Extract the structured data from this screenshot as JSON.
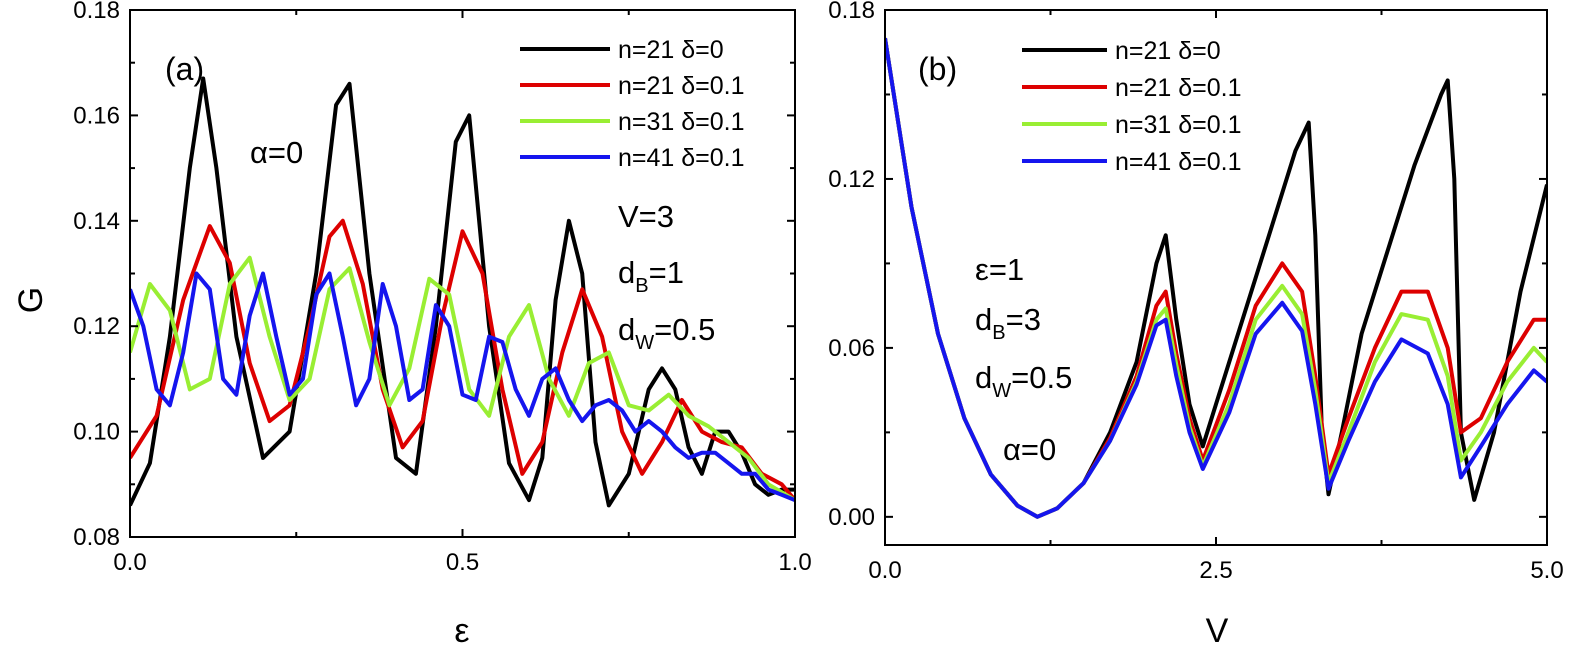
{
  "colors": {
    "black": "#000000",
    "red": "#dd0000",
    "green": "#99ee33",
    "blue": "#1515ee"
  },
  "chart_data": [
    {
      "type": "line",
      "panel_label": "(a)",
      "xlabel": "ε",
      "ylabel": "G",
      "xlim": [
        0.0,
        1.0
      ],
      "ylim": [
        0.08,
        0.18
      ],
      "xticks": [
        0.0,
        0.5,
        1.0
      ],
      "xtick_labels": [
        "0.0",
        "0.5",
        "1.0"
      ],
      "yticks": [
        0.08,
        0.1,
        0.12,
        0.14,
        0.16,
        0.18
      ],
      "ytick_labels": [
        "0.08",
        "0.10",
        "0.12",
        "0.14",
        "0.16",
        "0.18"
      ],
      "grid": false,
      "legend_position": "top-right",
      "annotations": [
        {
          "base": "α=0",
          "sub": "",
          "suffix": ""
        },
        {
          "base": "V=3",
          "sub": "",
          "suffix": ""
        },
        {
          "base": "d",
          "sub": "B",
          "suffix": "=1"
        },
        {
          "base": "d",
          "sub": "W",
          "suffix": "=0.5"
        }
      ],
      "series": [
        {
          "name": "n=21 δ=0",
          "color": "#000000",
          "x": [
            0.0,
            0.03,
            0.06,
            0.09,
            0.11,
            0.13,
            0.16,
            0.2,
            0.24,
            0.28,
            0.31,
            0.33,
            0.36,
            0.4,
            0.43,
            0.46,
            0.49,
            0.51,
            0.54,
            0.57,
            0.6,
            0.62,
            0.64,
            0.66,
            0.68,
            0.7,
            0.72,
            0.75,
            0.78,
            0.8,
            0.82,
            0.84,
            0.86,
            0.88,
            0.9,
            0.92,
            0.94,
            0.96,
            0.98,
            1.0
          ],
          "y": [
            0.086,
            0.094,
            0.118,
            0.15,
            0.167,
            0.15,
            0.118,
            0.095,
            0.1,
            0.13,
            0.162,
            0.166,
            0.13,
            0.095,
            0.092,
            0.12,
            0.155,
            0.16,
            0.12,
            0.094,
            0.087,
            0.095,
            0.125,
            0.14,
            0.13,
            0.098,
            0.086,
            0.092,
            0.108,
            0.112,
            0.108,
            0.097,
            0.092,
            0.1,
            0.1,
            0.096,
            0.09,
            0.088,
            0.089,
            0.089
          ]
        },
        {
          "name": "n=21 δ=0.1",
          "color": "#dd0000",
          "x": [
            0.0,
            0.04,
            0.08,
            0.12,
            0.15,
            0.18,
            0.21,
            0.24,
            0.27,
            0.3,
            0.32,
            0.35,
            0.38,
            0.41,
            0.44,
            0.47,
            0.5,
            0.53,
            0.56,
            0.59,
            0.62,
            0.65,
            0.68,
            0.71,
            0.74,
            0.77,
            0.8,
            0.83,
            0.86,
            0.89,
            0.92,
            0.95,
            0.98,
            1.0
          ],
          "y": [
            0.095,
            0.103,
            0.125,
            0.139,
            0.132,
            0.113,
            0.102,
            0.105,
            0.12,
            0.137,
            0.14,
            0.128,
            0.108,
            0.097,
            0.102,
            0.122,
            0.138,
            0.13,
            0.108,
            0.092,
            0.098,
            0.115,
            0.127,
            0.118,
            0.1,
            0.092,
            0.098,
            0.106,
            0.1,
            0.098,
            0.097,
            0.092,
            0.09,
            0.087
          ]
        },
        {
          "name": "n=31 δ=0.1",
          "color": "#99ee33",
          "x": [
            0.0,
            0.03,
            0.06,
            0.09,
            0.12,
            0.15,
            0.18,
            0.21,
            0.24,
            0.27,
            0.3,
            0.33,
            0.36,
            0.39,
            0.42,
            0.45,
            0.48,
            0.51,
            0.54,
            0.57,
            0.6,
            0.63,
            0.66,
            0.69,
            0.72,
            0.75,
            0.78,
            0.81,
            0.84,
            0.87,
            0.9,
            0.93,
            0.96,
            1.0
          ],
          "y": [
            0.115,
            0.128,
            0.123,
            0.108,
            0.11,
            0.128,
            0.133,
            0.118,
            0.106,
            0.11,
            0.127,
            0.131,
            0.117,
            0.105,
            0.112,
            0.129,
            0.126,
            0.108,
            0.103,
            0.118,
            0.124,
            0.11,
            0.103,
            0.113,
            0.115,
            0.105,
            0.104,
            0.107,
            0.103,
            0.101,
            0.098,
            0.095,
            0.09,
            0.087
          ]
        },
        {
          "name": "n=41 δ=0.1",
          "color": "#1515ee",
          "x": [
            0.0,
            0.02,
            0.04,
            0.06,
            0.08,
            0.1,
            0.12,
            0.14,
            0.16,
            0.18,
            0.2,
            0.22,
            0.24,
            0.26,
            0.28,
            0.3,
            0.32,
            0.34,
            0.36,
            0.38,
            0.4,
            0.42,
            0.44,
            0.46,
            0.48,
            0.5,
            0.52,
            0.54,
            0.56,
            0.58,
            0.6,
            0.62,
            0.64,
            0.66,
            0.68,
            0.7,
            0.72,
            0.74,
            0.76,
            0.78,
            0.8,
            0.82,
            0.84,
            0.86,
            0.88,
            0.9,
            0.92,
            0.94,
            0.96,
            0.98,
            1.0
          ],
          "y": [
            0.127,
            0.12,
            0.108,
            0.105,
            0.115,
            0.13,
            0.127,
            0.11,
            0.107,
            0.122,
            0.13,
            0.118,
            0.107,
            0.11,
            0.126,
            0.13,
            0.118,
            0.105,
            0.11,
            0.128,
            0.12,
            0.106,
            0.108,
            0.124,
            0.12,
            0.107,
            0.106,
            0.118,
            0.117,
            0.108,
            0.103,
            0.11,
            0.112,
            0.106,
            0.102,
            0.105,
            0.106,
            0.104,
            0.1,
            0.102,
            0.1,
            0.097,
            0.095,
            0.096,
            0.096,
            0.094,
            0.092,
            0.092,
            0.089,
            0.088,
            0.087
          ]
        }
      ]
    },
    {
      "type": "line",
      "panel_label": "(b)",
      "xlabel": "V",
      "ylabel": "",
      "xlim": [
        0.0,
        5.0
      ],
      "ylim": [
        -0.01,
        0.18
      ],
      "xticks": [
        0.0,
        2.5,
        5.0
      ],
      "xtick_labels": [
        "0.0",
        "2.5",
        "5.0"
      ],
      "yticks": [
        0.0,
        0.06,
        0.12,
        0.18
      ],
      "ytick_labels": [
        "0.00",
        "0.06",
        "0.12",
        "0.18"
      ],
      "grid": false,
      "legend_position": "top-center",
      "annotations": [
        {
          "base": "ε=1",
          "sub": "",
          "suffix": ""
        },
        {
          "base": "d",
          "sub": "B",
          "suffix": "=3"
        },
        {
          "base": "d",
          "sub": "W",
          "suffix": "=0.5"
        },
        {
          "base": "α=0",
          "sub": "",
          "suffix": ""
        }
      ],
      "series": [
        {
          "name": "n=21 δ=0",
          "color": "#000000",
          "x": [
            0.0,
            0.2,
            0.4,
            0.6,
            0.8,
            1.0,
            1.15,
            1.3,
            1.5,
            1.7,
            1.9,
            2.05,
            2.12,
            2.2,
            2.3,
            2.4,
            2.5,
            2.7,
            2.9,
            3.1,
            3.2,
            3.25,
            3.3,
            3.35,
            3.45,
            3.6,
            3.8,
            4.0,
            4.2,
            4.25,
            4.3,
            4.35,
            4.45,
            4.6,
            4.8,
            5.0
          ],
          "y": [
            0.17,
            0.11,
            0.065,
            0.035,
            0.015,
            0.004,
            0.0,
            0.003,
            0.012,
            0.03,
            0.055,
            0.09,
            0.1,
            0.07,
            0.04,
            0.025,
            0.04,
            0.07,
            0.1,
            0.13,
            0.14,
            0.1,
            0.03,
            0.008,
            0.03,
            0.065,
            0.095,
            0.125,
            0.15,
            0.155,
            0.12,
            0.03,
            0.006,
            0.03,
            0.08,
            0.118
          ]
        },
        {
          "name": "n=21 δ=0.1",
          "color": "#dd0000",
          "x": [
            0.0,
            0.2,
            0.4,
            0.6,
            0.8,
            1.0,
            1.15,
            1.3,
            1.5,
            1.7,
            1.9,
            2.05,
            2.12,
            2.2,
            2.3,
            2.4,
            2.6,
            2.8,
            3.0,
            3.15,
            3.25,
            3.35,
            3.5,
            3.7,
            3.9,
            4.1,
            4.25,
            4.35,
            4.5,
            4.7,
            4.9,
            5.0
          ],
          "y": [
            0.17,
            0.11,
            0.065,
            0.035,
            0.015,
            0.004,
            0.0,
            0.003,
            0.012,
            0.028,
            0.05,
            0.075,
            0.08,
            0.058,
            0.035,
            0.02,
            0.045,
            0.075,
            0.09,
            0.08,
            0.05,
            0.015,
            0.035,
            0.06,
            0.08,
            0.08,
            0.06,
            0.03,
            0.035,
            0.055,
            0.07,
            0.07
          ]
        },
        {
          "name": "n=31 δ=0.1",
          "color": "#99ee33",
          "x": [
            0.0,
            0.2,
            0.4,
            0.6,
            0.8,
            1.0,
            1.15,
            1.3,
            1.5,
            1.7,
            1.9,
            2.05,
            2.12,
            2.2,
            2.3,
            2.4,
            2.6,
            2.8,
            3.0,
            3.15,
            3.25,
            3.35,
            3.5,
            3.7,
            3.9,
            4.1,
            4.25,
            4.35,
            4.5,
            4.7,
            4.9,
            5.0
          ],
          "y": [
            0.17,
            0.11,
            0.065,
            0.035,
            0.015,
            0.004,
            0.0,
            0.003,
            0.012,
            0.027,
            0.048,
            0.07,
            0.074,
            0.054,
            0.032,
            0.018,
            0.04,
            0.07,
            0.082,
            0.072,
            0.045,
            0.012,
            0.03,
            0.055,
            0.072,
            0.07,
            0.05,
            0.02,
            0.03,
            0.048,
            0.06,
            0.055
          ]
        },
        {
          "name": "n=41 δ=0.1",
          "color": "#1515ee",
          "x": [
            0.0,
            0.2,
            0.4,
            0.6,
            0.8,
            1.0,
            1.15,
            1.3,
            1.5,
            1.7,
            1.9,
            2.05,
            2.12,
            2.2,
            2.3,
            2.4,
            2.6,
            2.8,
            3.0,
            3.15,
            3.25,
            3.35,
            3.5,
            3.7,
            3.9,
            4.1,
            4.25,
            4.35,
            4.5,
            4.7,
            4.9,
            5.0
          ],
          "y": [
            0.17,
            0.11,
            0.065,
            0.035,
            0.015,
            0.004,
            0.0,
            0.003,
            0.012,
            0.027,
            0.047,
            0.068,
            0.07,
            0.05,
            0.03,
            0.017,
            0.037,
            0.065,
            0.076,
            0.066,
            0.04,
            0.01,
            0.027,
            0.048,
            0.063,
            0.058,
            0.04,
            0.014,
            0.025,
            0.04,
            0.052,
            0.048
          ]
        }
      ]
    }
  ]
}
